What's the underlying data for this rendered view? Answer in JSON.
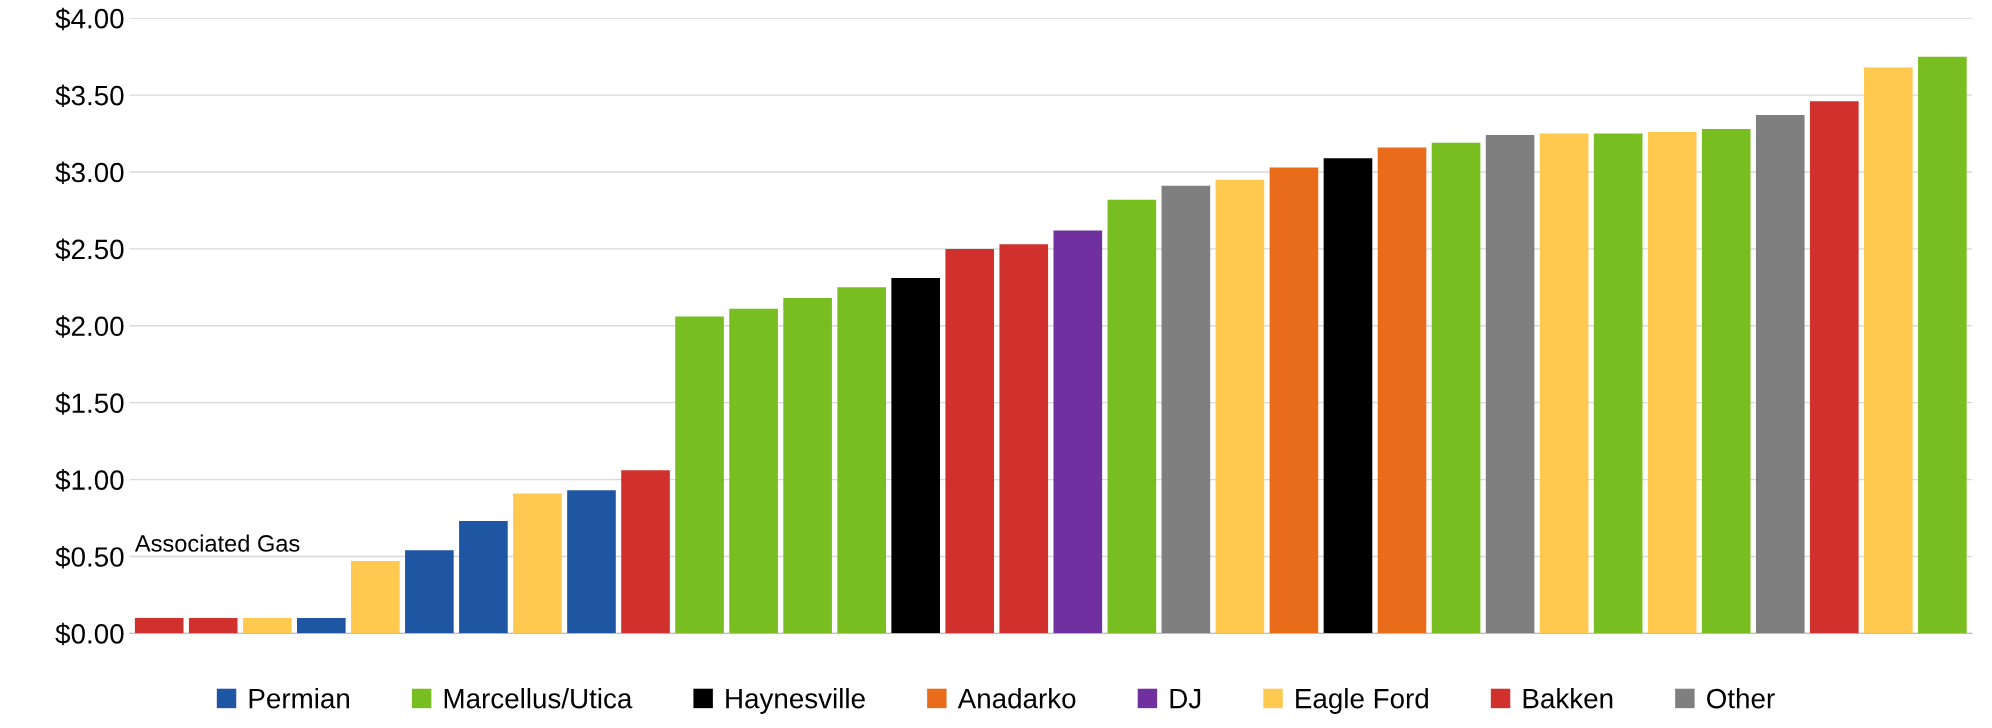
{
  "chart_data": {
    "type": "bar",
    "categories": [
      null,
      null,
      null,
      null,
      null,
      null,
      null,
      null,
      null,
      null,
      null,
      null,
      null,
      null,
      null,
      null,
      null,
      null,
      null,
      null,
      null,
      null,
      null,
      null,
      null,
      null,
      null,
      null,
      null,
      null,
      null,
      null,
      null,
      null
    ],
    "series": [
      {
        "name": "Permian",
        "color": "#1f56a3",
        "values": [
          null,
          null,
          null,
          0.1,
          null,
          0.54,
          0.73,
          null,
          0.93,
          null,
          null,
          null,
          null,
          null,
          null,
          null,
          null,
          null,
          null,
          null,
          null,
          null,
          null,
          null,
          null,
          null,
          null,
          null,
          null,
          null,
          null,
          null,
          null,
          null
        ]
      },
      {
        "name": "Marcellus/Utica",
        "color": "#78be20",
        "values": [
          null,
          null,
          null,
          null,
          null,
          null,
          null,
          null,
          null,
          null,
          2.06,
          2.11,
          2.18,
          2.25,
          null,
          null,
          null,
          null,
          2.82,
          null,
          null,
          null,
          null,
          null,
          3.19,
          null,
          null,
          3.25,
          null,
          3.28,
          null,
          null,
          null,
          3.75
        ]
      },
      {
        "name": "Haynesville",
        "color": "#000000",
        "values": [
          null,
          null,
          null,
          null,
          null,
          null,
          null,
          null,
          null,
          null,
          null,
          null,
          null,
          null,
          2.31,
          null,
          null,
          null,
          null,
          null,
          null,
          null,
          3.09,
          null,
          null,
          null,
          null,
          null,
          null,
          null,
          null,
          null,
          null,
          null
        ]
      },
      {
        "name": "Anadarko",
        "color": "#e86c1a",
        "values": [
          null,
          null,
          null,
          null,
          null,
          null,
          null,
          null,
          null,
          null,
          null,
          null,
          null,
          null,
          null,
          null,
          null,
          null,
          null,
          null,
          null,
          3.03,
          null,
          3.16,
          null,
          null,
          null,
          null,
          null,
          null,
          null,
          null,
          null,
          null
        ]
      },
      {
        "name": "DJ",
        "color": "#7030a0",
        "values": [
          null,
          null,
          null,
          null,
          null,
          null,
          null,
          null,
          null,
          null,
          null,
          null,
          null,
          null,
          null,
          null,
          null,
          2.62,
          null,
          null,
          null,
          null,
          null,
          null,
          null,
          null,
          null,
          null,
          null,
          null,
          null,
          null,
          null,
          null
        ]
      },
      {
        "name": "Eagle Ford",
        "color": "#ffc84e",
        "values": [
          null,
          null,
          0.1,
          null,
          0.47,
          null,
          null,
          0.91,
          null,
          null,
          null,
          null,
          null,
          null,
          null,
          null,
          null,
          null,
          null,
          null,
          2.95,
          null,
          null,
          null,
          null,
          null,
          3.25,
          null,
          3.26,
          null,
          null,
          null,
          3.68,
          null
        ]
      },
      {
        "name": "Bakken",
        "color": "#d0312d",
        "values": [
          0.1,
          0.1,
          null,
          null,
          null,
          null,
          null,
          null,
          null,
          1.06,
          null,
          null,
          null,
          null,
          null,
          2.5,
          2.53,
          null,
          null,
          null,
          null,
          null,
          null,
          null,
          null,
          null,
          null,
          null,
          null,
          null,
          null,
          3.46,
          null,
          null
        ]
      },
      {
        "name": "Other",
        "color": "#7f7f7f",
        "values": [
          null,
          null,
          null,
          null,
          null,
          null,
          null,
          null,
          null,
          null,
          null,
          null,
          null,
          null,
          null,
          null,
          null,
          null,
          null,
          2.91,
          null,
          null,
          null,
          null,
          null,
          3.24,
          null,
          null,
          null,
          null,
          3.37,
          null,
          null,
          null
        ]
      }
    ],
    "ylim": [
      0,
      4
    ],
    "yticks": [
      {
        "value": 0,
        "label": "$0.00"
      },
      {
        "value": 0.5,
        "label": "$0.50"
      },
      {
        "value": 1,
        "label": "$1.00"
      },
      {
        "value": 1.5,
        "label": "$1.50"
      },
      {
        "value": 2,
        "label": "$2.00"
      },
      {
        "value": 2.5,
        "label": "$2.50"
      },
      {
        "value": 3,
        "label": "$3.00"
      },
      {
        "value": 3.5,
        "label": "$3.50"
      },
      {
        "value": 4,
        "label": "$4.00"
      }
    ],
    "grid": "y",
    "legend": "bottom",
    "annotations": [
      "Associated Gas"
    ]
  }
}
